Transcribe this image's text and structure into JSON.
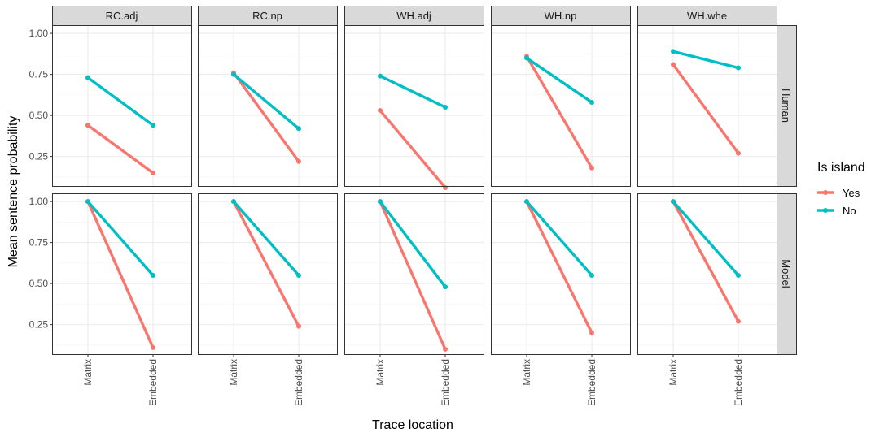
{
  "chart_data": {
    "type": "line",
    "facets": {
      "columns": [
        "RC.adj",
        "RC.np",
        "WH.adj",
        "WH.np",
        "WH.whe"
      ],
      "rows": [
        "Human",
        "Model"
      ]
    },
    "x_categories": [
      "Matrix",
      "Embedded"
    ],
    "xlabel": "Trace location",
    "ylabel": "Mean sentence probability",
    "yticks": [
      "0.25",
      "0.50",
      "0.75",
      "1.00"
    ],
    "ylim": [
      0.07,
      1.05
    ],
    "grid": true,
    "legend": {
      "title": "Is island",
      "placement": "right",
      "entries": [
        {
          "name": "Yes",
          "color": "#F8766D"
        },
        {
          "name": "No",
          "color": "#00BFC4"
        }
      ]
    },
    "panels": [
      {
        "row": "Human",
        "col": "RC.adj",
        "series": {
          "Yes": [
            0.44,
            0.15
          ],
          "No": [
            0.73,
            0.44
          ]
        }
      },
      {
        "row": "Human",
        "col": "RC.np",
        "series": {
          "Yes": [
            0.76,
            0.22
          ],
          "No": [
            0.75,
            0.42
          ]
        }
      },
      {
        "row": "Human",
        "col": "WH.adj",
        "series": {
          "Yes": [
            0.53,
            0.06
          ],
          "No": [
            0.74,
            0.55
          ]
        }
      },
      {
        "row": "Human",
        "col": "WH.np",
        "series": {
          "Yes": [
            0.86,
            0.18
          ],
          "No": [
            0.85,
            0.58
          ]
        }
      },
      {
        "row": "Human",
        "col": "WH.whe",
        "series": {
          "Yes": [
            0.81,
            0.27
          ],
          "No": [
            0.89,
            0.79
          ]
        }
      },
      {
        "row": "Model",
        "col": "RC.adj",
        "series": {
          "Yes": [
            1.0,
            0.11
          ],
          "No": [
            1.0,
            0.55
          ]
        }
      },
      {
        "row": "Model",
        "col": "RC.np",
        "series": {
          "Yes": [
            1.0,
            0.24
          ],
          "No": [
            1.0,
            0.55
          ]
        }
      },
      {
        "row": "Model",
        "col": "WH.adj",
        "series": {
          "Yes": [
            1.0,
            0.1
          ],
          "No": [
            1.0,
            0.48
          ]
        }
      },
      {
        "row": "Model",
        "col": "WH.np",
        "series": {
          "Yes": [
            1.0,
            0.2
          ],
          "No": [
            1.0,
            0.55
          ]
        }
      },
      {
        "row": "Model",
        "col": "WH.whe",
        "series": {
          "Yes": [
            1.0,
            0.27
          ],
          "No": [
            1.0,
            0.55
          ]
        }
      }
    ]
  }
}
